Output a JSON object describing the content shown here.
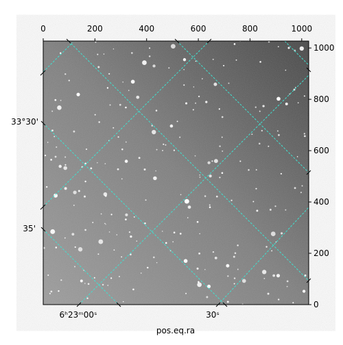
{
  "chart_data": {
    "type": "image",
    "xlabel": "pos.eq.ra",
    "xlim": [
      0,
      1027
    ],
    "xticks": [
      0,
      200,
      400,
      600,
      800,
      1000
    ],
    "ylim": [
      0,
      1027
    ],
    "yticks": [
      0,
      200,
      400,
      600,
      800,
      1000
    ],
    "world_y_labels": [
      "33°30'",
      "35'"
    ],
    "world_x_labels": [
      "6ʰ23ᵐ00ˢ",
      "30ˢ"
    ],
    "grid_color": "#40e0d0"
  }
}
